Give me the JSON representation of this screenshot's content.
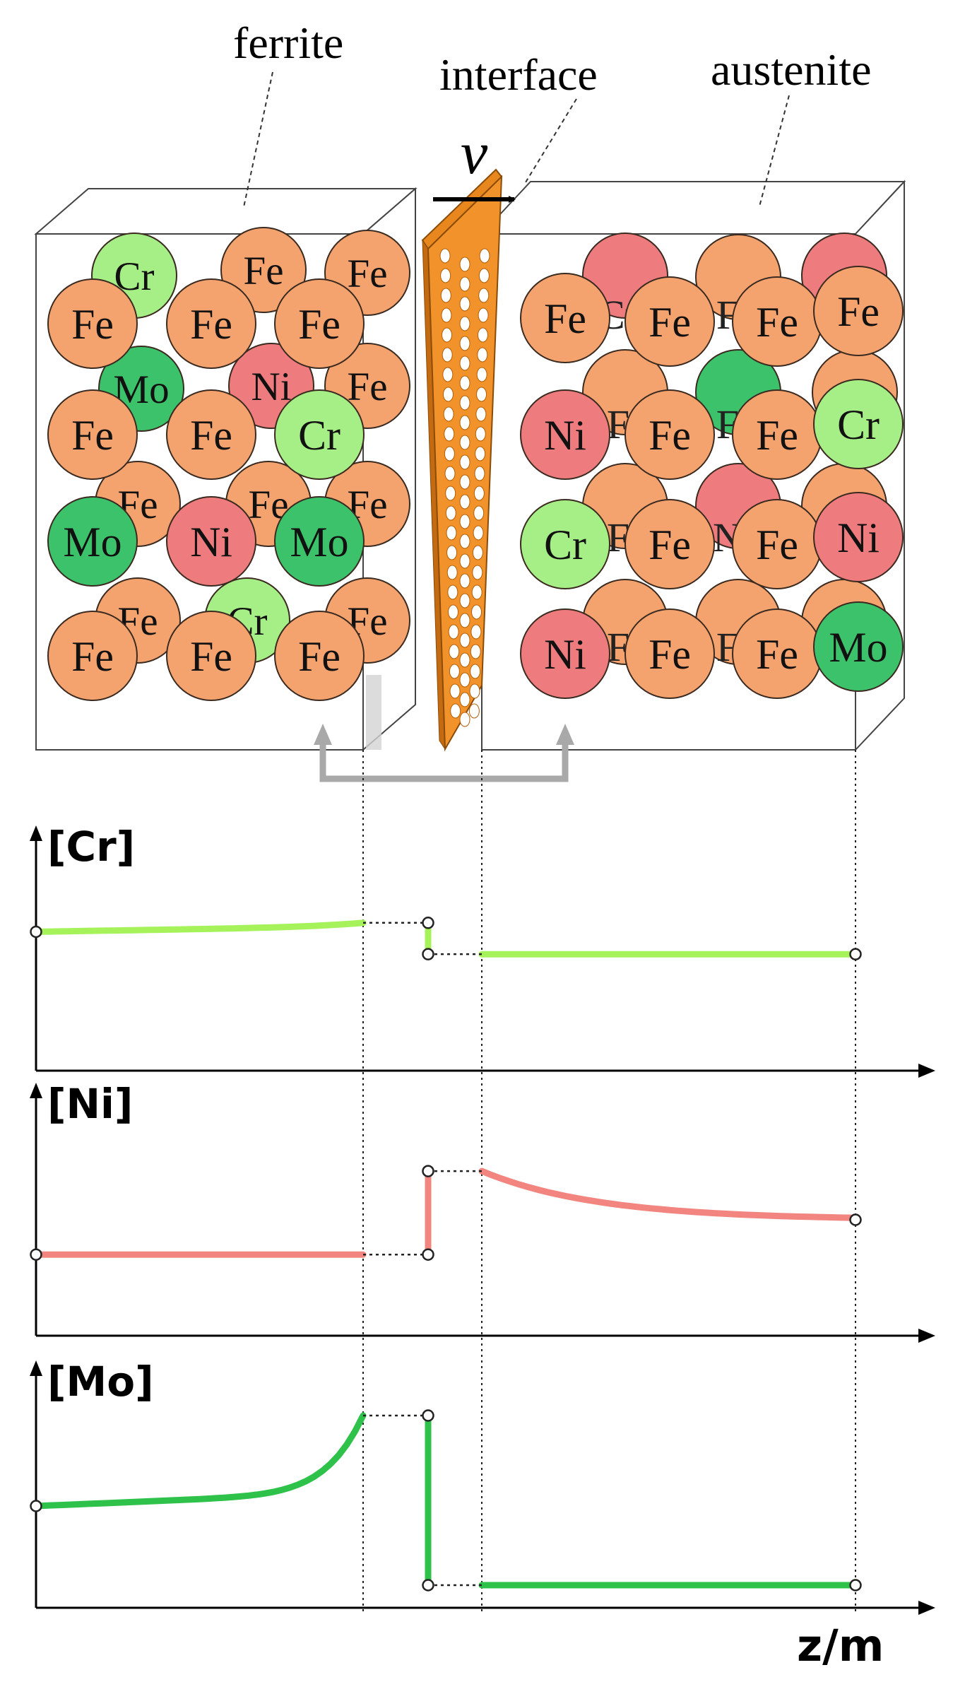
{
  "labels": {
    "ferrite": "ferrite",
    "interface": "interface",
    "austenite": "austenite",
    "velocity": "v",
    "x_axis": "z/m"
  },
  "atom_colors": {
    "Fe": "#F4A36E",
    "Cr": "#A6EE86",
    "Ni": "#EE7C7E",
    "Mo": "#3CC26A"
  },
  "ferrite_atoms": {
    "back": [
      "Cr",
      "Fe",
      "Fe",
      "Mo",
      "Ni",
      "Fe",
      "Fe",
      "Fe",
      "Fe",
      "Fe",
      "Cr",
      "Fe"
    ],
    "front": [
      "Fe",
      "Fe",
      "Fe",
      "Fe",
      "Fe",
      "Cr",
      "Mo",
      "Ni",
      "Mo",
      "Fe",
      "Fe",
      "Fe"
    ]
  },
  "austenite_atoms": {
    "back": [
      "Ni",
      "Fe",
      "Ni",
      "Fe",
      "Mo",
      "Fe",
      "Fe",
      "Ni",
      "Fe",
      "Fe",
      "Fe",
      "Fe"
    ],
    "front": [
      "Fe",
      "Fe",
      "Fe",
      "Fe",
      "Ni",
      "Fe",
      "Fe",
      "Cr",
      "Cr",
      "Fe",
      "Fe",
      "Ni",
      "Ni",
      "Fe",
      "Fe",
      "Mo"
    ],
    "hint": [
      "Cr",
      "F",
      "F",
      "F",
      "F",
      "F",
      "N",
      "F",
      "F",
      "F",
      "F",
      "F"
    ]
  },
  "chart_data": [
    {
      "type": "line",
      "ylabel": "[Cr]",
      "xlabel": "z/m",
      "color": "#A6F25A",
      "ferrite": {
        "start": 0.62,
        "end": 0.66,
        "shape": "rise-end"
      },
      "interface": {
        "ferrite_side": 0.66,
        "austenite_side": 0.52
      },
      "austenite": {
        "start": 0.52,
        "end": 0.52,
        "shape": "flat"
      }
    },
    {
      "type": "line",
      "ylabel": "[Ni]",
      "xlabel": "z/m",
      "color": "#F2857F",
      "ferrite": {
        "start": 0.35,
        "end": 0.35,
        "shape": "flat"
      },
      "interface": {
        "ferrite_side": 0.35,
        "austenite_side": 0.71
      },
      "austenite": {
        "start": 0.71,
        "end": 0.5,
        "shape": "decay"
      }
    },
    {
      "type": "line",
      "ylabel": "[Mo]",
      "xlabel": "z/m",
      "color": "#2FC24A",
      "ferrite": {
        "start": 0.45,
        "end": 0.85,
        "shape": "rise-end-steep"
      },
      "interface": {
        "ferrite_side": 0.85,
        "austenite_side": 0.1
      },
      "austenite": {
        "start": 0.1,
        "end": 0.1,
        "shape": "flat"
      }
    }
  ]
}
